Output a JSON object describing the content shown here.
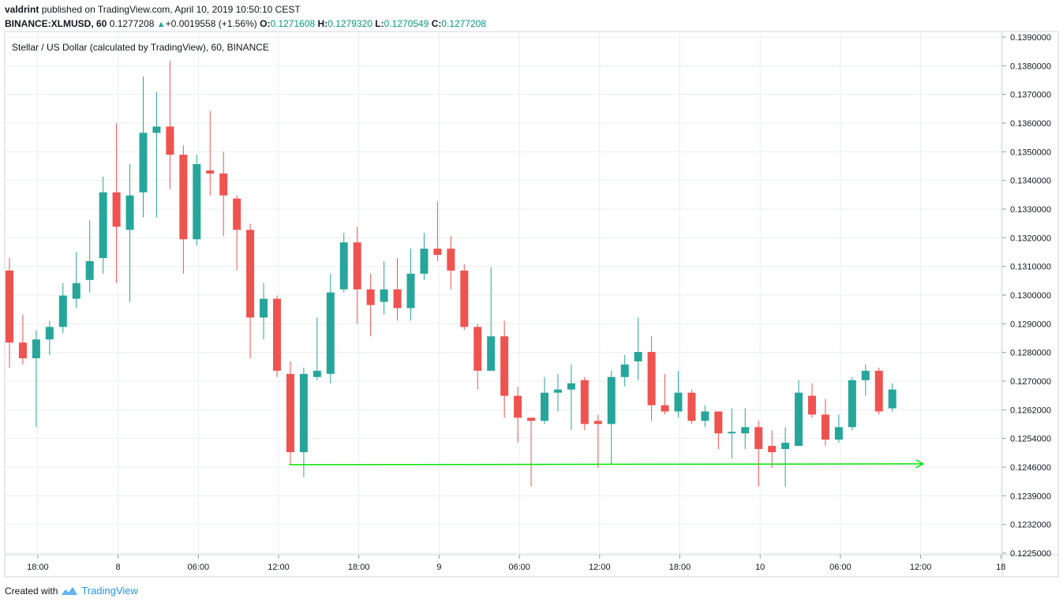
{
  "header": {
    "author": "valdrint",
    "published_text": "published on TradingView.com, April 10, 2019 10:50:10 CEST",
    "symbol": "BINANCE:XLMUSD, 60",
    "last_price": "0.1277208",
    "change": "+0.0019558 (+1.56%)",
    "open_label": "O:",
    "open": "0.1271608",
    "high_label": "H:",
    "high": "0.1279320",
    "low_label": "L:",
    "low": "0.1270549",
    "close_label": "C:",
    "close": "0.1277208"
  },
  "footer": {
    "created_with": "Created with",
    "brand": "TradingView"
  },
  "colors": {
    "up": "#26a69a",
    "down": "#ef5350",
    "support_line": "#00e600",
    "grid": "#e9eef3"
  },
  "chart_data": {
    "type": "candlestick",
    "title": "Stellar / US Dollar (calculated by TradingView), 60, BINANCE",
    "ylim": [
      0.1225,
      0.1392
    ],
    "y_ticks": [
      "0.1390000",
      "0.1380000",
      "0.1370000",
      "0.1360000",
      "0.1350000",
      "0.1340000",
      "0.1330000",
      "0.1320000",
      "0.1310000",
      "0.1300000",
      "0.1290000",
      "0.1280000",
      "0.1270000",
      "0.1262000",
      "0.1254000",
      "0.1246000",
      "0.1239000",
      "0.1232000",
      "0.1225000"
    ],
    "x_ticks": [
      {
        "label": "18:00",
        "bar": 2
      },
      {
        "label": "8",
        "bar": 8
      },
      {
        "label": "06:00",
        "bar": 14
      },
      {
        "label": "12:00",
        "bar": 20
      },
      {
        "label": "18:00",
        "bar": 26
      },
      {
        "label": "9",
        "bar": 32
      },
      {
        "label": "06:00",
        "bar": 38
      },
      {
        "label": "12:00",
        "bar": 44
      },
      {
        "label": "18:00",
        "bar": 50
      },
      {
        "label": "10",
        "bar": 56
      },
      {
        "label": "06:00",
        "bar": 62
      },
      {
        "label": "12:00",
        "bar": 68
      },
      {
        "label": "18",
        "bar": 74
      }
    ],
    "candles": [
      {
        "o": 0.1315,
        "h": 0.1319,
        "l": 0.1284,
        "c": 0.1292
      },
      {
        "o": 0.1292,
        "h": 0.1301,
        "l": 0.1285,
        "c": 0.1287
      },
      {
        "o": 0.1287,
        "h": 0.1296,
        "l": 0.1265,
        "c": 0.1293
      },
      {
        "o": 0.1293,
        "h": 0.1299,
        "l": 0.1288,
        "c": 0.1297
      },
      {
        "o": 0.1297,
        "h": 0.1311,
        "l": 0.1295,
        "c": 0.1307
      },
      {
        "o": 0.1306,
        "h": 0.1321,
        "l": 0.1303,
        "c": 0.1311
      },
      {
        "o": 0.1312,
        "h": 0.1331,
        "l": 0.1308,
        "c": 0.1318
      },
      {
        "o": 0.1319,
        "h": 0.1345,
        "l": 0.1314,
        "c": 0.134
      },
      {
        "o": 0.134,
        "h": 0.1362,
        "l": 0.1311,
        "c": 0.1329
      },
      {
        "o": 0.1328,
        "h": 0.1349,
        "l": 0.1305,
        "c": 0.1339
      },
      {
        "o": 0.134,
        "h": 0.1377,
        "l": 0.1332,
        "c": 0.1359
      },
      {
        "o": 0.1359,
        "h": 0.1372,
        "l": 0.1332,
        "c": 0.1361
      },
      {
        "o": 0.1361,
        "h": 0.1382,
        "l": 0.1341,
        "c": 0.1352
      },
      {
        "o": 0.1352,
        "h": 0.1355,
        "l": 0.1314,
        "c": 0.1325
      },
      {
        "o": 0.1325,
        "h": 0.1352,
        "l": 0.1323,
        "c": 0.1349
      },
      {
        "o": 0.1347,
        "h": 0.1366,
        "l": 0.1339,
        "c": 0.1346
      },
      {
        "o": 0.1346,
        "h": 0.1353,
        "l": 0.1326,
        "c": 0.1339
      },
      {
        "o": 0.1338,
        "h": 0.1339,
        "l": 0.1315,
        "c": 0.1328
      },
      {
        "o": 0.1328,
        "h": 0.133,
        "l": 0.1287,
        "c": 0.13
      },
      {
        "o": 0.13,
        "h": 0.1311,
        "l": 0.1293,
        "c": 0.1306
      },
      {
        "o": 0.1306,
        "h": 0.1307,
        "l": 0.1281,
        "c": 0.1283
      },
      {
        "o": 0.1282,
        "h": 0.1286,
        "l": 0.1253,
        "c": 0.1257
      },
      {
        "o": 0.1257,
        "h": 0.1284,
        "l": 0.1249,
        "c": 0.1282
      },
      {
        "o": 0.1281,
        "h": 0.13,
        "l": 0.128,
        "c": 0.1283
      },
      {
        "o": 0.1282,
        "h": 0.1314,
        "l": 0.1279,
        "c": 0.1308
      },
      {
        "o": 0.1309,
        "h": 0.1327,
        "l": 0.1308,
        "c": 0.1324
      },
      {
        "o": 0.1324,
        "h": 0.1329,
        "l": 0.1298,
        "c": 0.1309
      },
      {
        "o": 0.1309,
        "h": 0.1314,
        "l": 0.1294,
        "c": 0.1304
      },
      {
        "o": 0.1305,
        "h": 0.1318,
        "l": 0.1301,
        "c": 0.1309
      },
      {
        "o": 0.1309,
        "h": 0.1319,
        "l": 0.1299,
        "c": 0.1303
      },
      {
        "o": 0.1303,
        "h": 0.1322,
        "l": 0.1299,
        "c": 0.1314
      },
      {
        "o": 0.1314,
        "h": 0.1327,
        "l": 0.1312,
        "c": 0.1322
      },
      {
        "o": 0.1322,
        "h": 0.1337,
        "l": 0.1318,
        "c": 0.132
      },
      {
        "o": 0.1322,
        "h": 0.1326,
        "l": 0.1309,
        "c": 0.1315
      },
      {
        "o": 0.1315,
        "h": 0.1317,
        "l": 0.1296,
        "c": 0.1297
      },
      {
        "o": 0.1297,
        "h": 0.1298,
        "l": 0.1277,
        "c": 0.1283
      },
      {
        "o": 0.1283,
        "h": 0.1316,
        "l": 0.1283,
        "c": 0.1294
      },
      {
        "o": 0.1294,
        "h": 0.1299,
        "l": 0.1268,
        "c": 0.1275
      },
      {
        "o": 0.1275,
        "h": 0.1278,
        "l": 0.126,
        "c": 0.1268
      },
      {
        "o": 0.1268,
        "h": 0.1268,
        "l": 0.1246,
        "c": 0.1267
      },
      {
        "o": 0.1267,
        "h": 0.1281,
        "l": 0.1266,
        "c": 0.1276
      },
      {
        "o": 0.1276,
        "h": 0.1282,
        "l": 0.127,
        "c": 0.1277
      },
      {
        "o": 0.1277,
        "h": 0.1285,
        "l": 0.1264,
        "c": 0.1279
      },
      {
        "o": 0.128,
        "h": 0.1281,
        "l": 0.1264,
        "c": 0.1266
      },
      {
        "o": 0.1267,
        "h": 0.1269,
        "l": 0.1252,
        "c": 0.1266
      },
      {
        "o": 0.1266,
        "h": 0.1283,
        "l": 0.1253,
        "c": 0.1281
      },
      {
        "o": 0.1281,
        "h": 0.1288,
        "l": 0.1278,
        "c": 0.1285
      },
      {
        "o": 0.1286,
        "h": 0.13,
        "l": 0.128,
        "c": 0.1289
      },
      {
        "o": 0.1289,
        "h": 0.1294,
        "l": 0.1267,
        "c": 0.1272
      },
      {
        "o": 0.1272,
        "h": 0.1282,
        "l": 0.1269,
        "c": 0.127
      },
      {
        "o": 0.127,
        "h": 0.1283,
        "l": 0.1268,
        "c": 0.1276
      },
      {
        "o": 0.1276,
        "h": 0.1277,
        "l": 0.1266,
        "c": 0.1267
      },
      {
        "o": 0.1267,
        "h": 0.1272,
        "l": 0.1265,
        "c": 0.127
      },
      {
        "o": 0.127,
        "h": 0.127,
        "l": 0.1258,
        "c": 0.1263
      },
      {
        "o": 0.1263,
        "h": 0.1271,
        "l": 0.1255,
        "c": 0.12635
      },
      {
        "o": 0.1263,
        "h": 0.1271,
        "l": 0.1258,
        "c": 0.1265
      },
      {
        "o": 0.1265,
        "h": 0.1267,
        "l": 0.1246,
        "c": 0.1258
      },
      {
        "o": 0.1259,
        "h": 0.1264,
        "l": 0.1252,
        "c": 0.1257
      },
      {
        "o": 0.1258,
        "h": 0.1265,
        "l": 0.1246,
        "c": 0.126
      },
      {
        "o": 0.1259,
        "h": 0.128,
        "l": 0.1259,
        "c": 0.1276
      },
      {
        "o": 0.1275,
        "h": 0.1279,
        "l": 0.1268,
        "c": 0.1269
      },
      {
        "o": 0.1269,
        "h": 0.1274,
        "l": 0.1259,
        "c": 0.1261
      },
      {
        "o": 0.1261,
        "h": 0.1269,
        "l": 0.126,
        "c": 0.1265
      },
      {
        "o": 0.1265,
        "h": 0.1281,
        "l": 0.1264,
        "c": 0.128
      },
      {
        "o": 0.128,
        "h": 0.1285,
        "l": 0.1275,
        "c": 0.1283
      },
      {
        "o": 0.1283,
        "h": 0.1284,
        "l": 0.1269,
        "c": 0.127
      },
      {
        "o": 0.1271,
        "h": 0.1279,
        "l": 0.127,
        "c": 0.1277
      }
    ],
    "support_line": {
      "value": 0.1253,
      "from_bar": 21,
      "to_bar": 68.3
    }
  }
}
